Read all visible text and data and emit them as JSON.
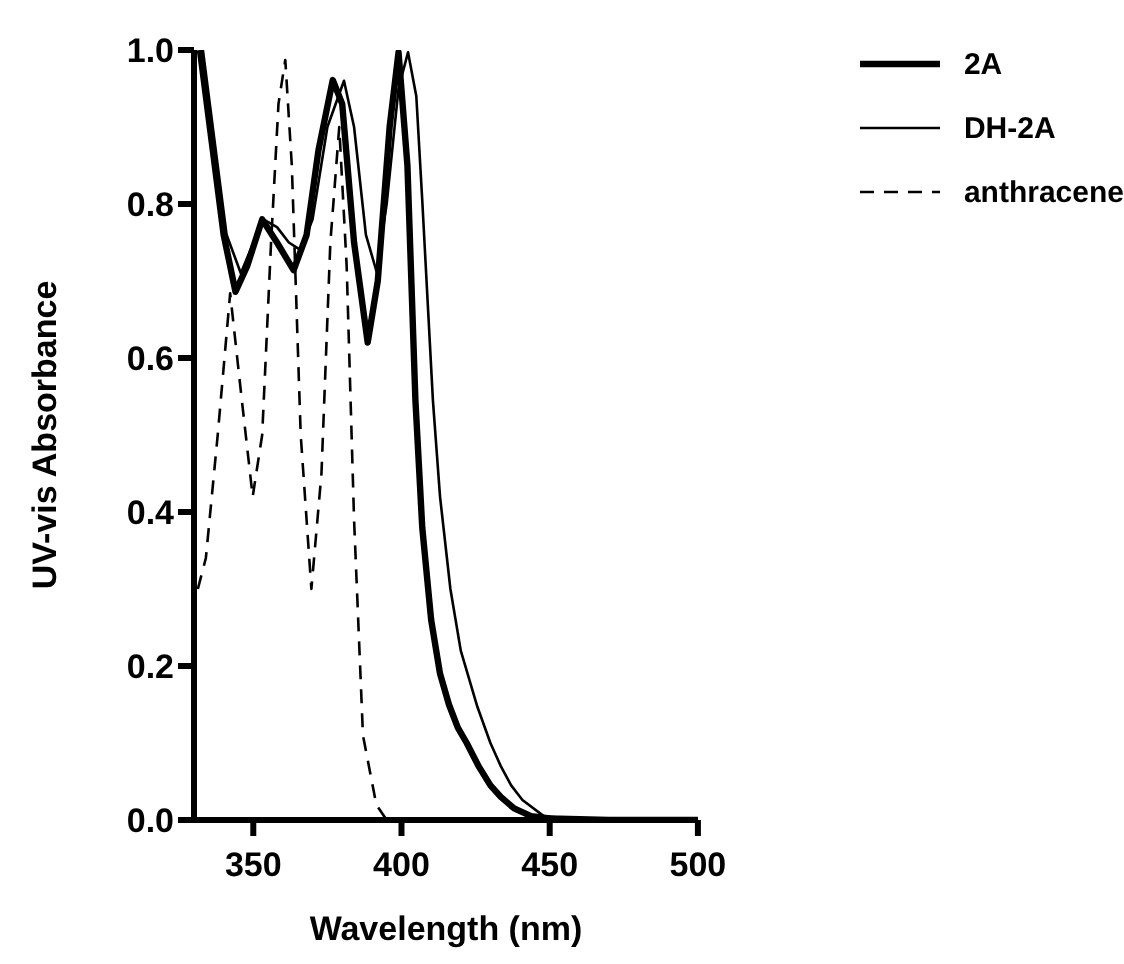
{
  "chart_data": {
    "type": "line",
    "xlabel": "Wavelength (nm)",
    "ylabel": "UV-vis Absorbance",
    "xlim": [
      330,
      500
    ],
    "xticks": [
      350,
      400,
      450,
      500
    ],
    "ylim": [
      0,
      1
    ],
    "yticks": [
      {
        "value": 0,
        "label": "0.0"
      },
      {
        "value": 0.2,
        "label": "0.2"
      },
      {
        "value": 0.4,
        "label": "0.4"
      },
      {
        "value": 0.6,
        "label": "0.6"
      },
      {
        "value": 0.8,
        "label": "0.8"
      },
      {
        "value": 1,
        "label": "1.0"
      }
    ],
    "grid": false,
    "legend": "top right",
    "marker": "none",
    "series": [
      {
        "name": "2A",
        "color": "#000000",
        "line_style": "solid",
        "x": [
          332,
          336,
          340,
          344,
          348,
          353,
          358,
          363.6,
          368,
          372,
          376.8,
          380,
          384,
          388.6,
          392,
          396,
          399,
          402,
          404.7,
          407,
          410,
          413,
          416,
          419,
          422,
          426,
          430,
          433.5,
          438,
          443.7,
          450,
          470,
          500
        ],
        "values": [
          1.0,
          0.88,
          0.76,
          0.686,
          0.72,
          0.78,
          0.75,
          0.714,
          0.76,
          0.87,
          0.961,
          0.93,
          0.75,
          0.62,
          0.7,
          0.9,
          0.997,
          0.85,
          0.545,
          0.38,
          0.26,
          0.19,
          0.15,
          0.12,
          0.1,
          0.07,
          0.045,
          0.03,
          0.015,
          0.005,
          0.002,
          0,
          0
        ]
      },
      {
        "name": "DH-2A",
        "color": "#000000",
        "line_style": "solid",
        "x": [
          333,
          337,
          341,
          345.8,
          349,
          353.4,
          358,
          362,
          366,
          370,
          375,
          380.6,
          384,
          388,
          391.6,
          395,
          399,
          402.2,
          405,
          407,
          410.6,
          413,
          416.5,
          420,
          425.6,
          430,
          433.5,
          437,
          440.8,
          448,
          460,
          500
        ],
        "values": [
          1.0,
          0.88,
          0.76,
          0.71,
          0.74,
          0.78,
          0.77,
          0.75,
          0.74,
          0.78,
          0.9,
          0.96,
          0.9,
          0.76,
          0.712,
          0.8,
          0.95,
          0.997,
          0.94,
          0.805,
          0.545,
          0.42,
          0.3,
          0.22,
          0.147,
          0.1,
          0.07,
          0.045,
          0.026,
          0.005,
          0.001,
          0
        ]
      },
      {
        "name": "anthracene",
        "color": "#000000",
        "line_style": "dashed",
        "x": [
          331.3,
          334,
          338,
          342.2,
          346,
          349.8,
          353,
          356,
          358.5,
          360.8,
          363,
          366,
          369.6,
          373,
          376,
          379,
          381.5,
          384,
          387,
          391.5,
          395
        ],
        "values": [
          0.3,
          0.34,
          0.5,
          0.684,
          0.55,
          0.42,
          0.5,
          0.75,
          0.93,
          0.987,
          0.85,
          0.5,
          0.3,
          0.45,
          0.75,
          0.9,
          0.72,
          0.39,
          0.11,
          0.02,
          0
        ]
      }
    ]
  }
}
